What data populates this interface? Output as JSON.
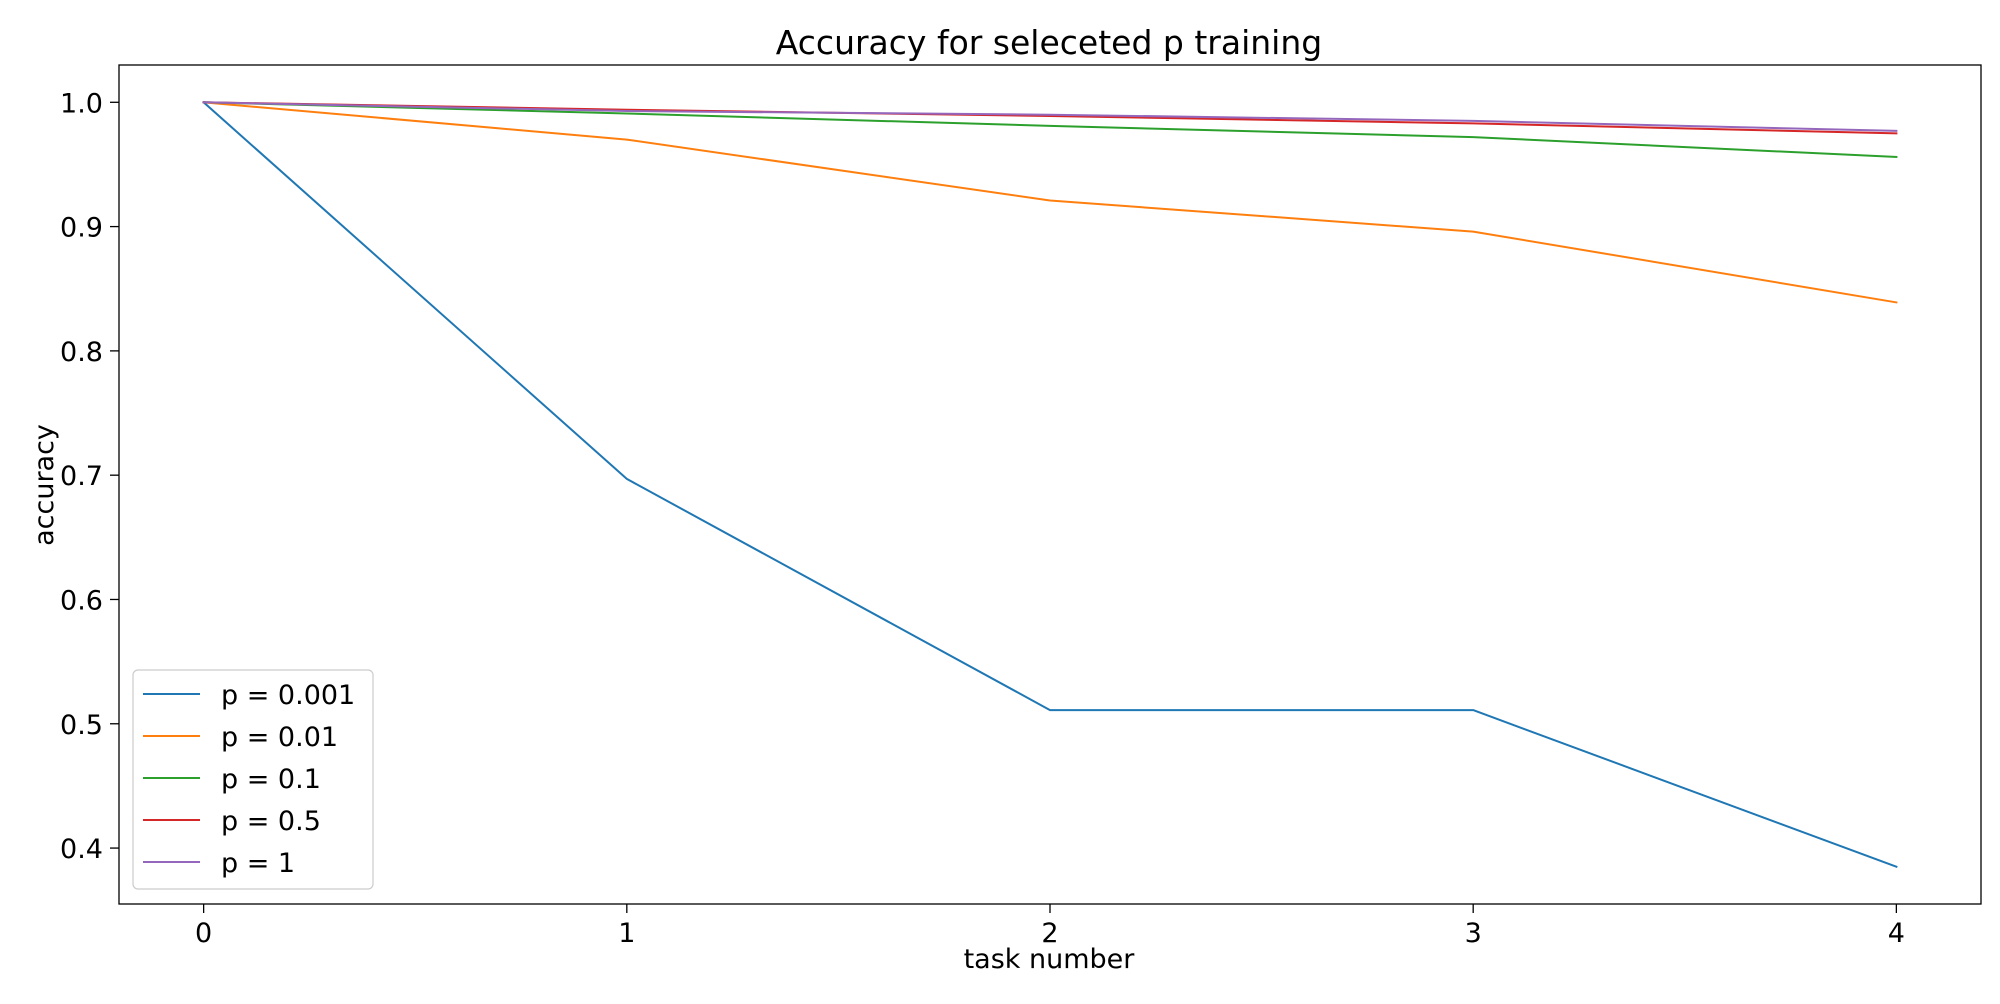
{
  "chart_data": {
    "type": "line",
    "title": "Accuracy for seleceted p training",
    "xlabel": "task number",
    "ylabel": "accuracy",
    "x": [
      0,
      1,
      2,
      3,
      4
    ],
    "xlim": [
      -0.2,
      4.2
    ],
    "ylim": [
      0.355,
      1.03
    ],
    "xticks": [
      0,
      1,
      2,
      3,
      4
    ],
    "xtick_labels": [
      "0",
      "1",
      "2",
      "3",
      "4"
    ],
    "yticks": [
      0.4,
      0.5,
      0.6,
      0.7,
      0.8,
      0.9,
      1.0
    ],
    "ytick_labels": [
      "0.4",
      "0.5",
      "0.6",
      "0.7",
      "0.8",
      "0.9",
      "1.0"
    ],
    "grid": false,
    "legend_position": "lower-left",
    "series": [
      {
        "name": "p = 0.001",
        "color": "#1f77b4",
        "values": [
          1.0,
          0.697,
          0.511,
          0.511,
          0.385
        ]
      },
      {
        "name": "p = 0.01",
        "color": "#ff7f0e",
        "values": [
          1.0,
          0.97,
          0.921,
          0.896,
          0.839
        ]
      },
      {
        "name": "p = 0.1",
        "color": "#2ca02c",
        "values": [
          1.0,
          0.991,
          0.981,
          0.972,
          0.956
        ]
      },
      {
        "name": "p = 0.5",
        "color": "#d62728",
        "values": [
          1.0,
          0.994,
          0.989,
          0.983,
          0.975
        ]
      },
      {
        "name": "p = 1",
        "color": "#9467bd",
        "values": [
          1.0,
          0.993,
          0.99,
          0.985,
          0.977
        ]
      }
    ]
  }
}
